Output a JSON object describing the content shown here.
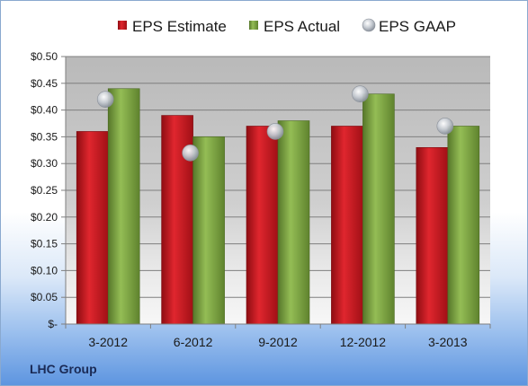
{
  "company": "LHC Group",
  "colors": {
    "estimate": "#c8131f",
    "actual": "#7aa23f",
    "gaap": "#c2c7cf"
  },
  "chart_data": {
    "type": "bar",
    "categories": [
      "3-2012",
      "6-2012",
      "9-2012",
      "12-2012",
      "3-2013"
    ],
    "series": [
      {
        "name": "EPS Estimate",
        "type": "bar",
        "values": [
          0.36,
          0.39,
          0.37,
          0.37,
          0.33
        ]
      },
      {
        "name": "EPS Actual",
        "type": "bar",
        "values": [
          0.44,
          0.35,
          0.38,
          0.43,
          0.37
        ]
      },
      {
        "name": "EPS GAAP",
        "type": "scatter",
        "values": [
          0.42,
          0.32,
          0.36,
          0.43,
          0.37
        ]
      }
    ],
    "ylim": [
      0,
      0.5
    ],
    "yticks": [
      0,
      0.05,
      0.1,
      0.15,
      0.2,
      0.25,
      0.3,
      0.35,
      0.4,
      0.45,
      0.5
    ],
    "ytick_labels": [
      "$-",
      "$0.05",
      "$0.10",
      "$0.15",
      "$0.20",
      "$0.25",
      "$0.30",
      "$0.35",
      "$0.40",
      "$0.45",
      "$0.50"
    ],
    "legend_position": "top",
    "grid": true,
    "xlabel": "",
    "ylabel": "",
    "title": ""
  }
}
